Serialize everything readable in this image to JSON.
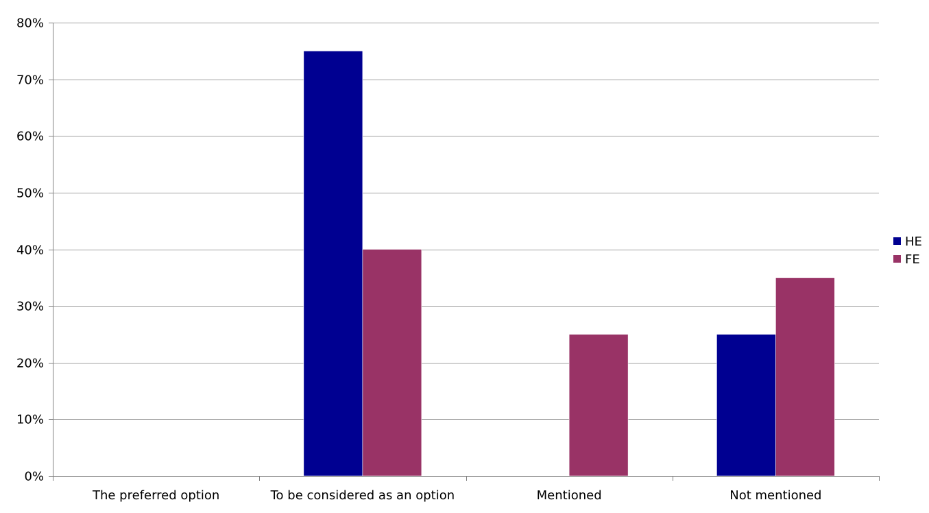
{
  "chart_data": {
    "type": "bar",
    "categories": [
      "The preferred option",
      "To be considered as an option",
      "Mentioned",
      "Not mentioned"
    ],
    "series": [
      {
        "name": "HE",
        "color": "#000091",
        "values": [
          0,
          75,
          0,
          25
        ]
      },
      {
        "name": "FE",
        "color": "#993366",
        "values": [
          0,
          40,
          25,
          35
        ]
      }
    ],
    "ylim": [
      0,
      80
    ],
    "yticks": [
      0,
      10,
      20,
      30,
      40,
      50,
      60,
      70,
      80
    ],
    "ytick_labels": [
      "0%",
      "10%",
      "20%",
      "30%",
      "40%",
      "50%",
      "60%",
      "70%",
      "80%"
    ],
    "grid": true,
    "legend_position": "right",
    "title": "",
    "xlabel": "",
    "ylabel": ""
  }
}
